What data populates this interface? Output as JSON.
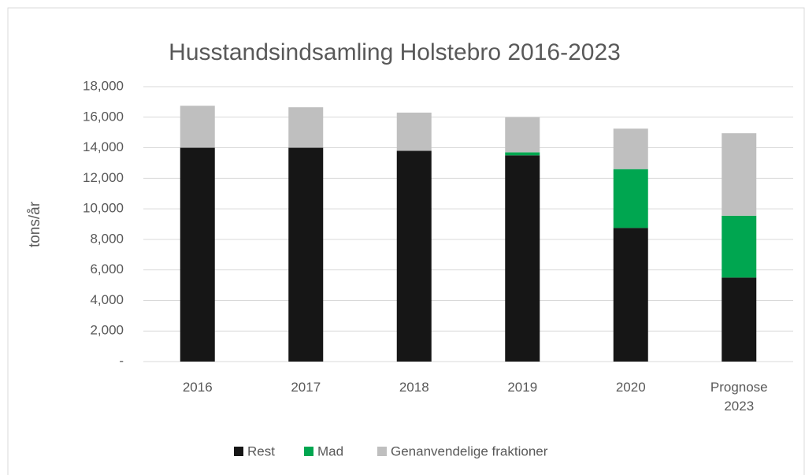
{
  "chart_data": {
    "type": "stacked_bar",
    "title": "Husstandsindsamling Holstebro 2016-2023",
    "y_label": "tons/år",
    "categories": [
      "2016",
      "2017",
      "2018",
      "2019",
      "2020",
      "Prognose\n2023"
    ],
    "series": [
      {
        "name": "Rest",
        "color": "#161616",
        "values": [
          14000,
          14000,
          13800,
          13500,
          8750,
          5500
        ]
      },
      {
        "name": "Mad",
        "color": "#00a650",
        "values": [
          0,
          0,
          0,
          200,
          3850,
          4050
        ]
      },
      {
        "name": "Genanvendelige fraktioner",
        "color": "#bfbfbf",
        "values": [
          2750,
          2650,
          2500,
          2300,
          2650,
          5400
        ]
      }
    ],
    "ylim": [
      0,
      18000
    ],
    "yticks": [
      {
        "value": 0,
        "label": "-"
      },
      {
        "value": 2000,
        "label": "2,000"
      },
      {
        "value": 4000,
        "label": "4,000"
      },
      {
        "value": 6000,
        "label": "6,000"
      },
      {
        "value": 8000,
        "label": "8,000"
      },
      {
        "value": 10000,
        "label": "10,000"
      },
      {
        "value": 12000,
        "label": "12,000"
      },
      {
        "value": 14000,
        "label": "14,000"
      },
      {
        "value": 16000,
        "label": "16,000"
      },
      {
        "value": 18000,
        "label": "18,000"
      }
    ],
    "grid": true,
    "legend": "bottom"
  }
}
